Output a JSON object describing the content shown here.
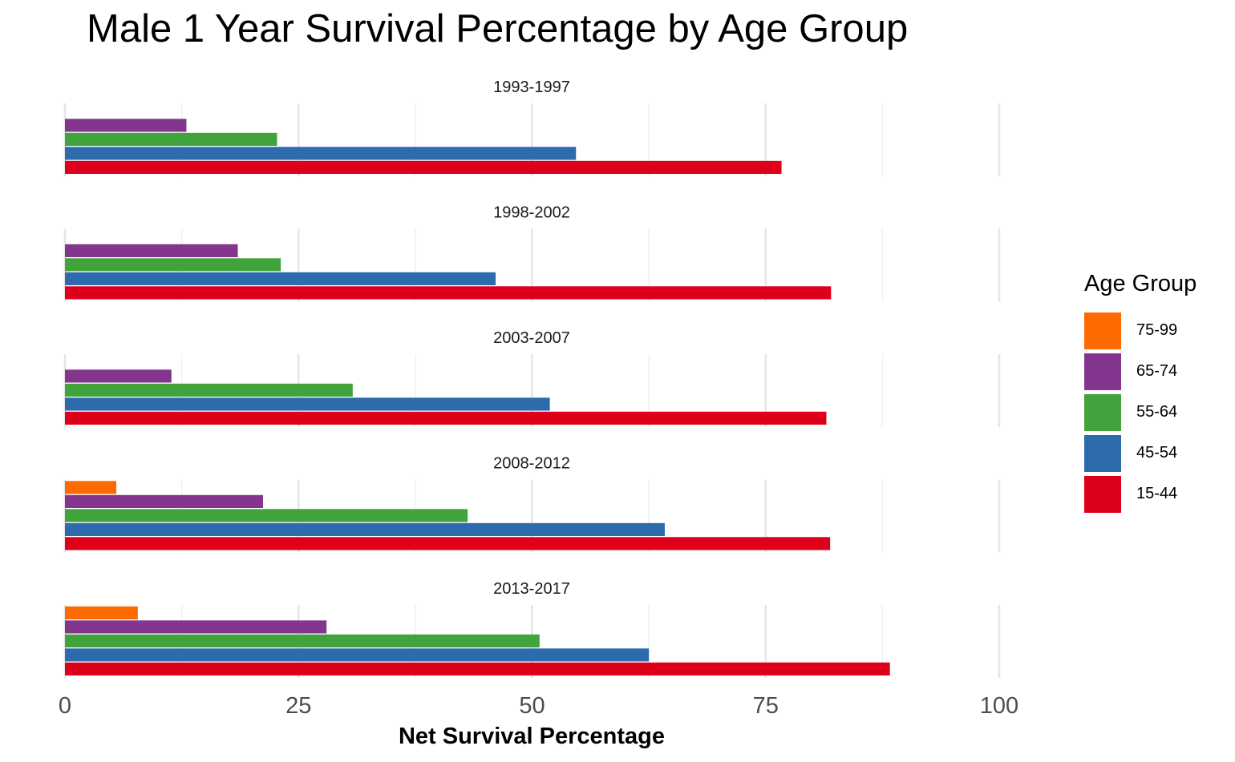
{
  "chart_data": {
    "type": "bar",
    "orientation": "horizontal",
    "faceted": true,
    "title": "Male 1 Year Survival Percentage by Age Group",
    "xlabel": "Net Survival Percentage",
    "ylabel": "",
    "xlim": [
      0,
      100
    ],
    "xticks": [
      0,
      25,
      50,
      75,
      100
    ],
    "grid": true,
    "legend": {
      "title": "Age Group",
      "position": "right"
    },
    "age_groups": [
      "75-99",
      "65-74",
      "55-64",
      "45-54",
      "15-44"
    ],
    "colors": {
      "75-99": "#FF6A00",
      "65-74": "#84368F",
      "55-64": "#41A33B",
      "45-54": "#2D6BAC",
      "15-44": "#DE001A"
    },
    "panels": [
      {
        "label": "1993-1997",
        "values": {
          "75-99": null,
          "65-74": 13,
          "55-64": 22.7,
          "45-54": 54.7,
          "15-44": 76.7
        }
      },
      {
        "label": "1998-2002",
        "values": {
          "75-99": null,
          "65-74": 18.5,
          "55-64": 23.1,
          "45-54": 46.1,
          "15-44": 82
        }
      },
      {
        "label": "2003-2007",
        "values": {
          "75-99": null,
          "65-74": 11.4,
          "55-64": 30.8,
          "45-54": 51.9,
          "15-44": 81.5
        }
      },
      {
        "label": "2008-2012",
        "values": {
          "75-99": 5.5,
          "65-74": 21.2,
          "55-64": 43.1,
          "45-54": 64.2,
          "15-44": 81.9
        }
      },
      {
        "label": "2013-2017",
        "values": {
          "75-99": 7.8,
          "65-74": 28,
          "55-64": 50.8,
          "45-54": 62.5,
          "15-44": 88.3
        }
      }
    ]
  }
}
